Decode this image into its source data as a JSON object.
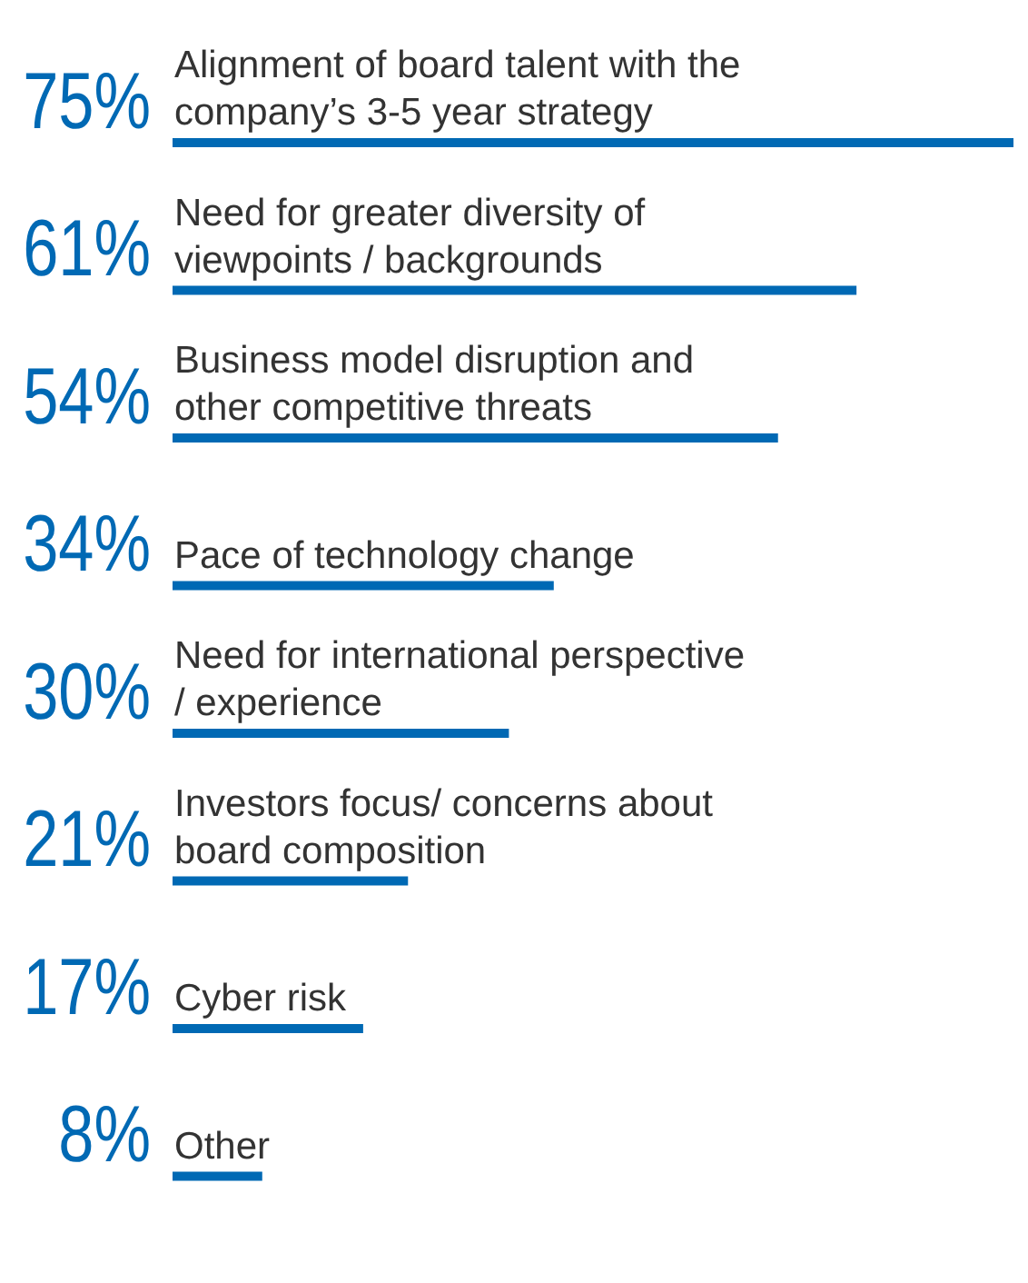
{
  "chart_data": {
    "type": "bar",
    "orientation": "horizontal",
    "categories": [
      "Alignment of board talent with the company’s 3-5 year strategy",
      "Need for greater diversity of viewpoints / backgrounds",
      "Business model disruption and other competitive threats",
      "Pace of technology change",
      "Need for international perspective / experience",
      "Investors focus/ concerns about board composition",
      "Cyber risk",
      "Other"
    ],
    "values": [
      75,
      61,
      54,
      34,
      30,
      21,
      17,
      8
    ],
    "value_labels": [
      "75%",
      "61%",
      "54%",
      "34%",
      "30%",
      "21%",
      "17%",
      "8%"
    ],
    "color": "#0069b4"
  }
}
